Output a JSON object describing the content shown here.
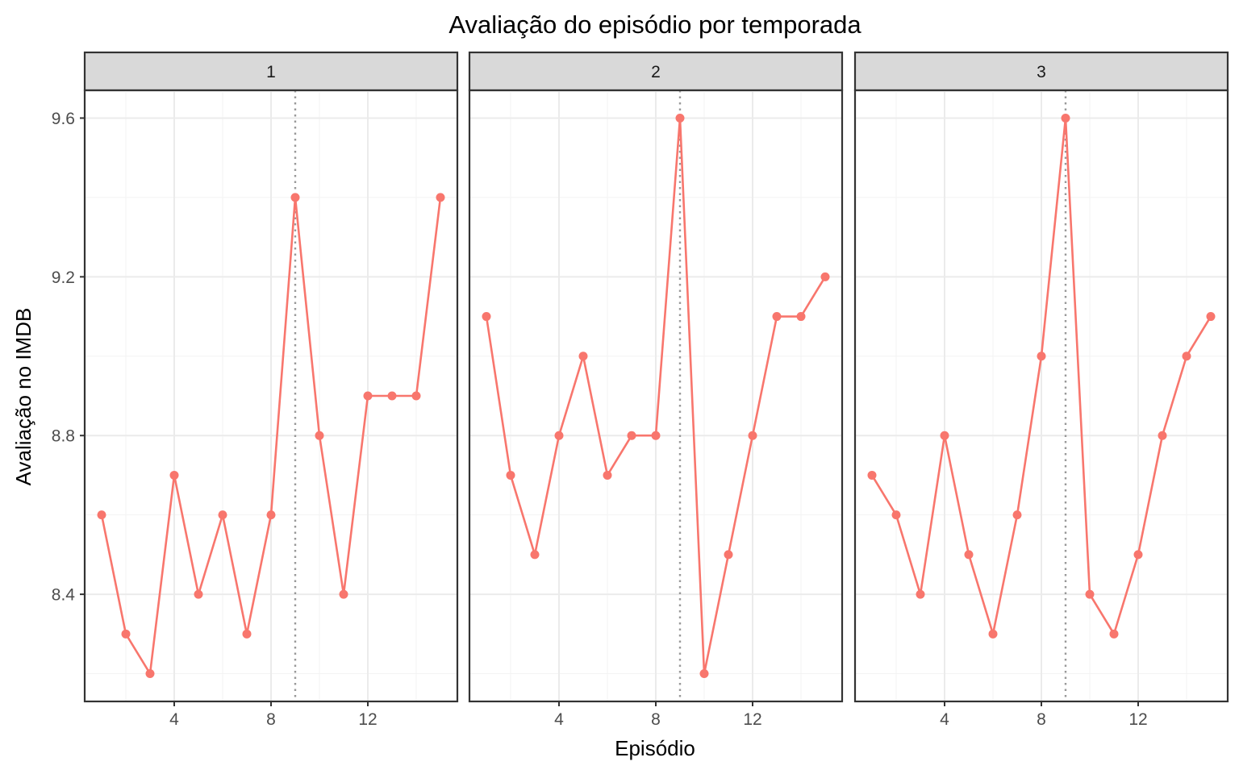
{
  "chart_data": {
    "type": "line",
    "title": "Avaliação do episódio por temporada",
    "xlabel": "Episódio",
    "ylabel": "Avaliação no IMDB",
    "xlim": [
      0.3,
      15.7
    ],
    "ylim": [
      8.13,
      9.67
    ],
    "x_ticks": [
      4,
      8,
      12
    ],
    "y_ticks": [
      8.4,
      8.8,
      9.2,
      9.6
    ],
    "x_minor": [
      2,
      6,
      10,
      14
    ],
    "y_minor": [
      8.2,
      8.6,
      9.0,
      9.4
    ],
    "vline_x": 9,
    "grid": true,
    "legend": "none",
    "color": "#F8766D",
    "facets": [
      {
        "label": "1",
        "x": [
          1,
          2,
          3,
          4,
          5,
          6,
          7,
          8,
          9,
          10,
          11,
          12,
          13,
          14,
          15
        ],
        "values": [
          8.6,
          8.3,
          8.2,
          8.7,
          8.4,
          8.6,
          8.3,
          8.6,
          9.4,
          8.8,
          8.4,
          8.9,
          8.9,
          8.9,
          9.4
        ]
      },
      {
        "label": "2",
        "x": [
          1,
          2,
          3,
          4,
          5,
          6,
          7,
          8,
          9,
          10,
          11,
          12,
          13,
          14,
          15
        ],
        "values": [
          9.1,
          8.7,
          8.5,
          8.8,
          9.0,
          8.7,
          8.8,
          8.8,
          9.6,
          8.2,
          8.5,
          8.8,
          9.1,
          9.1,
          9.2
        ]
      },
      {
        "label": "3",
        "x": [
          1,
          2,
          3,
          4,
          5,
          6,
          7,
          8,
          9,
          10,
          11,
          12,
          13,
          14,
          15
        ],
        "values": [
          8.7,
          8.6,
          8.4,
          8.8,
          8.5,
          8.3,
          8.6,
          9.0,
          9.6,
          8.4,
          8.3,
          8.5,
          8.8,
          9.0,
          9.1
        ]
      }
    ]
  }
}
